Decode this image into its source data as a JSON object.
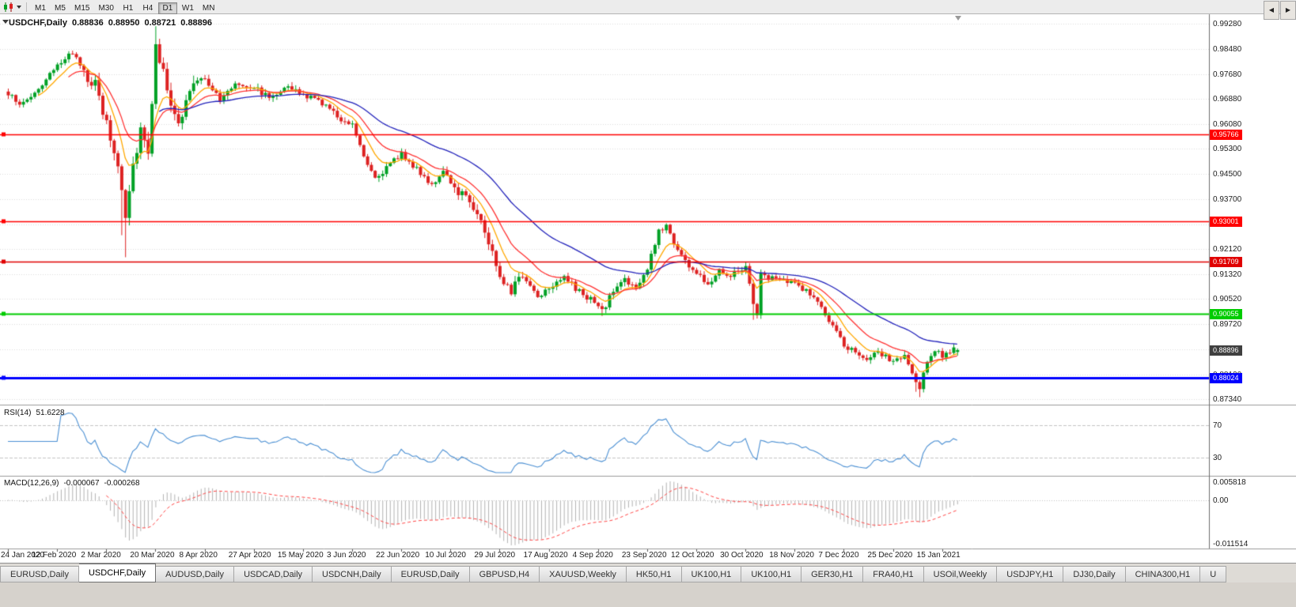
{
  "toolbar": {
    "timeframes": [
      "M1",
      "M5",
      "M15",
      "M30",
      "H1",
      "H4",
      "D1",
      "W1",
      "MN"
    ],
    "active_timeframe": "D1"
  },
  "header": {
    "symbol": "USDCHF,Daily",
    "open": "0.88836",
    "high": "0.88950",
    "low": "0.88721",
    "close": "0.88896"
  },
  "colors": {
    "bull": "#00a125",
    "bear": "#dd2222"
  },
  "chart_data": {
    "type": "candlestick",
    "symbol": "USDCHF",
    "timeframe": "Daily",
    "last_candle": {
      "open": 0.88836,
      "high": 0.8895,
      "low": 0.88721,
      "close": 0.88896
    },
    "price_range": {
      "min": 0.8716,
      "max": 0.9958
    },
    "y_ticks": [
      "0.99280",
      "0.98480",
      "0.97680",
      "0.96880",
      "0.96080",
      "0.95300",
      "0.94500",
      "0.93700",
      "0.92900",
      "0.92120",
      "0.91320",
      "0.90520",
      "0.89720",
      "0.88920",
      "0.88120",
      "0.87340"
    ],
    "x_labels": [
      "24 Jan 2020",
      "12 Feb 2020",
      "2 Mar 2020",
      "20 Mar 2020",
      "8 Apr 2020",
      "27 Apr 2020",
      "15 May 2020",
      "3 Jun 2020",
      "22 Jun 2020",
      "10 Jul 2020",
      "29 Jul 2020",
      "17 Aug 2020",
      "4 Sep 2020",
      "23 Sep 2020",
      "12 Oct 2020",
      "30 Oct 2020",
      "18 Nov 2020",
      "7 Dec 2020",
      "25 Dec 2020",
      "15 Jan 2021"
    ],
    "bars_per_label": 13,
    "candle_count": 252,
    "close_anchors": [
      [
        0,
        0.97
      ],
      [
        4,
        0.9672
      ],
      [
        8,
        0.9722
      ],
      [
        13,
        0.979
      ],
      [
        16,
        0.9838
      ],
      [
        19,
        0.98
      ],
      [
        23,
        0.9728
      ],
      [
        26,
        0.9605
      ],
      [
        29,
        0.9478
      ],
      [
        31,
        0.933
      ],
      [
        33,
        0.948
      ],
      [
        35,
        0.9597
      ],
      [
        37,
        0.953
      ],
      [
        39,
        0.9845
      ],
      [
        41,
        0.98
      ],
      [
        43,
        0.9655
      ],
      [
        45,
        0.96
      ],
      [
        48,
        0.9718
      ],
      [
        52,
        0.9758
      ],
      [
        56,
        0.9682
      ],
      [
        60,
        0.974
      ],
      [
        65,
        0.9728
      ],
      [
        69,
        0.9692
      ],
      [
        73,
        0.973
      ],
      [
        78,
        0.97
      ],
      [
        83,
        0.9678
      ],
      [
        87,
        0.9632
      ],
      [
        91,
        0.961
      ],
      [
        94,
        0.9512
      ],
      [
        97,
        0.944
      ],
      [
        101,
        0.9478
      ],
      [
        104,
        0.9518
      ],
      [
        108,
        0.9462
      ],
      [
        112,
        0.942
      ],
      [
        115,
        0.945
      ],
      [
        117,
        0.9412
      ],
      [
        121,
        0.9382
      ],
      [
        124,
        0.933
      ],
      [
        127,
        0.9232
      ],
      [
        130,
        0.913
      ],
      [
        133,
        0.9082
      ],
      [
        136,
        0.9128
      ],
      [
        140,
        0.9062
      ],
      [
        143,
        0.9092
      ],
      [
        147,
        0.9128
      ],
      [
        150,
        0.9082
      ],
      [
        154,
        0.9052
      ],
      [
        157,
        0.9012
      ],
      [
        160,
        0.9078
      ],
      [
        163,
        0.9118
      ],
      [
        166,
        0.9082
      ],
      [
        169,
        0.9148
      ],
      [
        172,
        0.9268
      ],
      [
        174,
        0.9288
      ],
      [
        176,
        0.9232
      ],
      [
        179,
        0.9172
      ],
      [
        182,
        0.9132
      ],
      [
        185,
        0.9102
      ],
      [
        188,
        0.9148
      ],
      [
        191,
        0.9128
      ],
      [
        195,
        0.9158
      ],
      [
        197,
        0.9035
      ],
      [
        198,
        0.9008
      ],
      [
        199,
        0.9128
      ],
      [
        201,
        0.9122
      ],
      [
        204,
        0.9112
      ],
      [
        208,
        0.91
      ],
      [
        211,
        0.908
      ],
      [
        214,
        0.9042
      ],
      [
        217,
        0.8982
      ],
      [
        220,
        0.8922
      ],
      [
        221,
        0.8902
      ],
      [
        224,
        0.8892
      ],
      [
        227,
        0.8852
      ],
      [
        230,
        0.8882
      ],
      [
        234,
        0.8852
      ],
      [
        237,
        0.8872
      ],
      [
        239,
        0.8812
      ],
      [
        241,
        0.8762
      ],
      [
        243,
        0.8858
      ],
      [
        245,
        0.8892
      ],
      [
        247,
        0.8872
      ],
      [
        249,
        0.8888
      ],
      [
        251,
        0.88896
      ]
    ],
    "wick_events": [
      {
        "i": 30,
        "low": 0.9255
      },
      {
        "i": 31,
        "low": 0.9185
      },
      {
        "i": 39,
        "high": 0.992
      },
      {
        "i": 40,
        "high": 0.988
      },
      {
        "i": 157,
        "low": 0.8998
      },
      {
        "i": 197,
        "low": 0.8986
      },
      {
        "i": 240,
        "low": 0.8757
      },
      {
        "i": 241,
        "low": 0.874
      }
    ],
    "h_lines": [
      {
        "price": 0.95766,
        "label": "0.95766",
        "color": "#ff0000",
        "width": 1.4
      },
      {
        "price": 0.93001,
        "label": "0.93001",
        "color": "#ff0000",
        "width": 1.4
      },
      {
        "price": 0.91709,
        "label": "0.91709",
        "color": "#e00000",
        "width": 1.4
      },
      {
        "price": 0.90055,
        "label": "0.90055",
        "color": "#00cc00",
        "width": 2
      },
      {
        "price": 0.88024,
        "label": "0.88024",
        "color": "#0000ff",
        "width": 3
      }
    ],
    "current_price": {
      "value": 0.88896,
      "label": "0.88896",
      "tag_color": "#3f3f3f"
    },
    "moving_averages": [
      {
        "period": 8,
        "color": "#ffa800"
      },
      {
        "period": 16,
        "color": "#ff3333"
      },
      {
        "period": 40,
        "color": "#2222bb"
      }
    ],
    "rsi": {
      "label": "RSI(14)",
      "value": "51.6228",
      "period": 14,
      "levels": [
        70,
        30
      ],
      "color": "#4a8fd3"
    },
    "macd": {
      "label": "MACD(12,26,9)",
      "value_main": "-0.000067",
      "value_signal": "-0.000268",
      "fast": 12,
      "slow": 26,
      "signal": 9,
      "axis_top": "0.005818",
      "axis_zero": "0.00",
      "axis_bottom": "-0.011514",
      "hist_color": "#b3b3b3",
      "signal_color": "#ff4444"
    }
  },
  "tabs": {
    "items": [
      "EURUSD,Daily",
      "USDCHF,Daily",
      "AUDUSD,Daily",
      "USDCAD,Daily",
      "USDCNH,Daily",
      "EURUSD,Daily",
      "GBPUSD,H4",
      "XAUUSD,Weekly",
      "HK50,H1",
      "UK100,H1",
      "UK100,H1",
      "GER30,H1",
      "FRA40,H1",
      "USOil,Weekly",
      "USDJPY,H1",
      "DJ30,Daily",
      "CHINA300,H1",
      "U"
    ],
    "active_index": 1,
    "scroll_left": "◀",
    "scroll_right": "▶"
  }
}
